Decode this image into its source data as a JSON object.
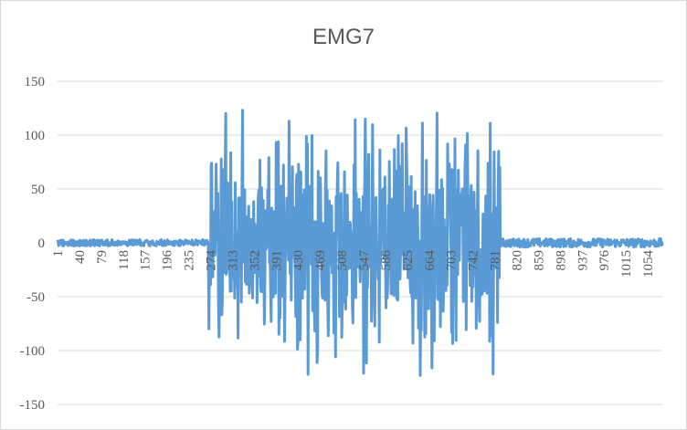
{
  "chart_data": {
    "type": "line",
    "title": "EMG7",
    "xlabel": "",
    "ylabel": "",
    "x_range": [
      1,
      1080
    ],
    "ylim": [
      -150,
      150
    ],
    "y_ticks": [
      150,
      100,
      50,
      0,
      -50,
      -100,
      -150
    ],
    "x_tick_labels": [
      "1",
      "40",
      "79",
      "118",
      "157",
      "196",
      "235",
      "274",
      "313",
      "352",
      "391",
      "430",
      "469",
      "508",
      "547",
      "586",
      "625",
      "664",
      "703",
      "742",
      "781",
      "820",
      "859",
      "898",
      "937",
      "976",
      "1015",
      "1054"
    ],
    "grid": "horizontal",
    "legend": "none",
    "color": "#5b9bd5",
    "series": [
      {
        "segments": [
          {
            "x_start": 1,
            "x_end": 270,
            "amplitude": 3
          },
          {
            "x_start": 270,
            "x_end": 790,
            "amplitude": 125
          },
          {
            "x_start": 790,
            "x_end": 1080,
            "amplitude": 4
          }
        ]
      }
    ]
  }
}
